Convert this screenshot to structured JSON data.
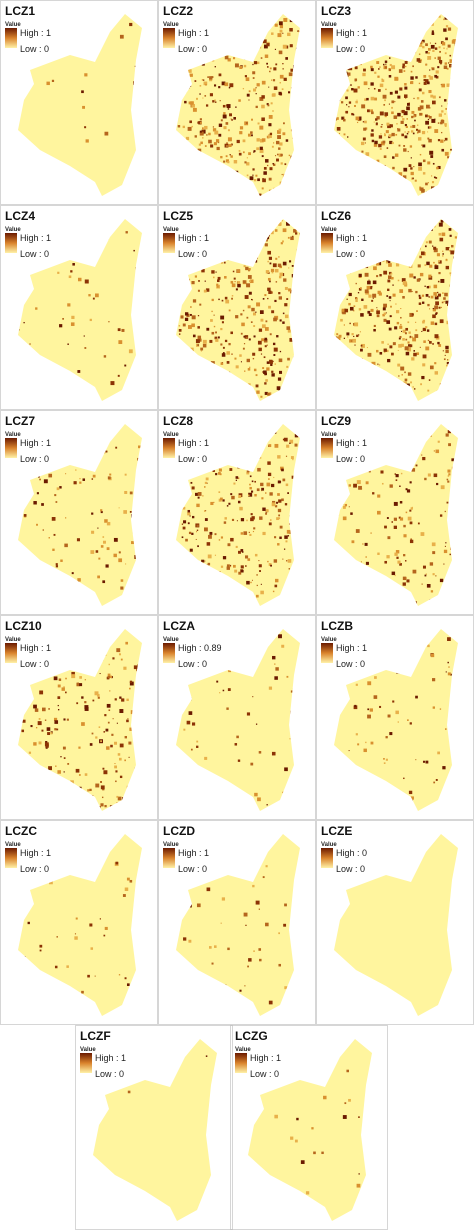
{
  "panels": [
    {
      "title": "LCZ1",
      "legend_title": "Value",
      "high": "High : 1",
      "low": "Low : 0"
    },
    {
      "title": "LCZ2",
      "legend_title": "Value",
      "high": "High : 1",
      "low": "Low : 0"
    },
    {
      "title": "LCZ3",
      "legend_title": "Value",
      "high": "High : 1",
      "low": "Low : 0"
    },
    {
      "title": "LCZ4",
      "legend_title": "Value",
      "high": "High : 1",
      "low": "Low : 0"
    },
    {
      "title": "LCZ5",
      "legend_title": "Value",
      "high": "High : 1",
      "low": "Low : 0"
    },
    {
      "title": "LCZ6",
      "legend_title": "Value",
      "high": "High : 1",
      "low": "Low : 0"
    },
    {
      "title": "LCZ7",
      "legend_title": "Value",
      "high": "High : 1",
      "low": "Low : 0"
    },
    {
      "title": "LCZ8",
      "legend_title": "Value",
      "high": "High : 1",
      "low": "Low : 0"
    },
    {
      "title": "LCZ9",
      "legend_title": "Value",
      "high": "High : 1",
      "low": "Low : 0"
    },
    {
      "title": "LCZ10",
      "legend_title": "Value",
      "high": "High : 1",
      "low": "Low : 0"
    },
    {
      "title": "LCZA",
      "legend_title": "Value",
      "high": "High : 0.89",
      "low": "Low : 0"
    },
    {
      "title": "LCZB",
      "legend_title": "Value",
      "high": "High : 1",
      "low": "Low : 0"
    },
    {
      "title": "LCZC",
      "legend_title": "Value",
      "high": "High : 1",
      "low": "Low : 0"
    },
    {
      "title": "LCZD",
      "legend_title": "Value",
      "high": "High : 1",
      "low": "Low : 0"
    },
    {
      "title": "LCZE",
      "legend_title": "Value",
      "high": "High : 0",
      "low": "Low : 0"
    },
    {
      "title": "LCZF",
      "legend_title": "Value",
      "high": "High : 1",
      "low": "Low : 0"
    },
    {
      "title": "LCZG",
      "legend_title": "Value",
      "high": "High : 1",
      "low": "Low : 0"
    }
  ]
}
